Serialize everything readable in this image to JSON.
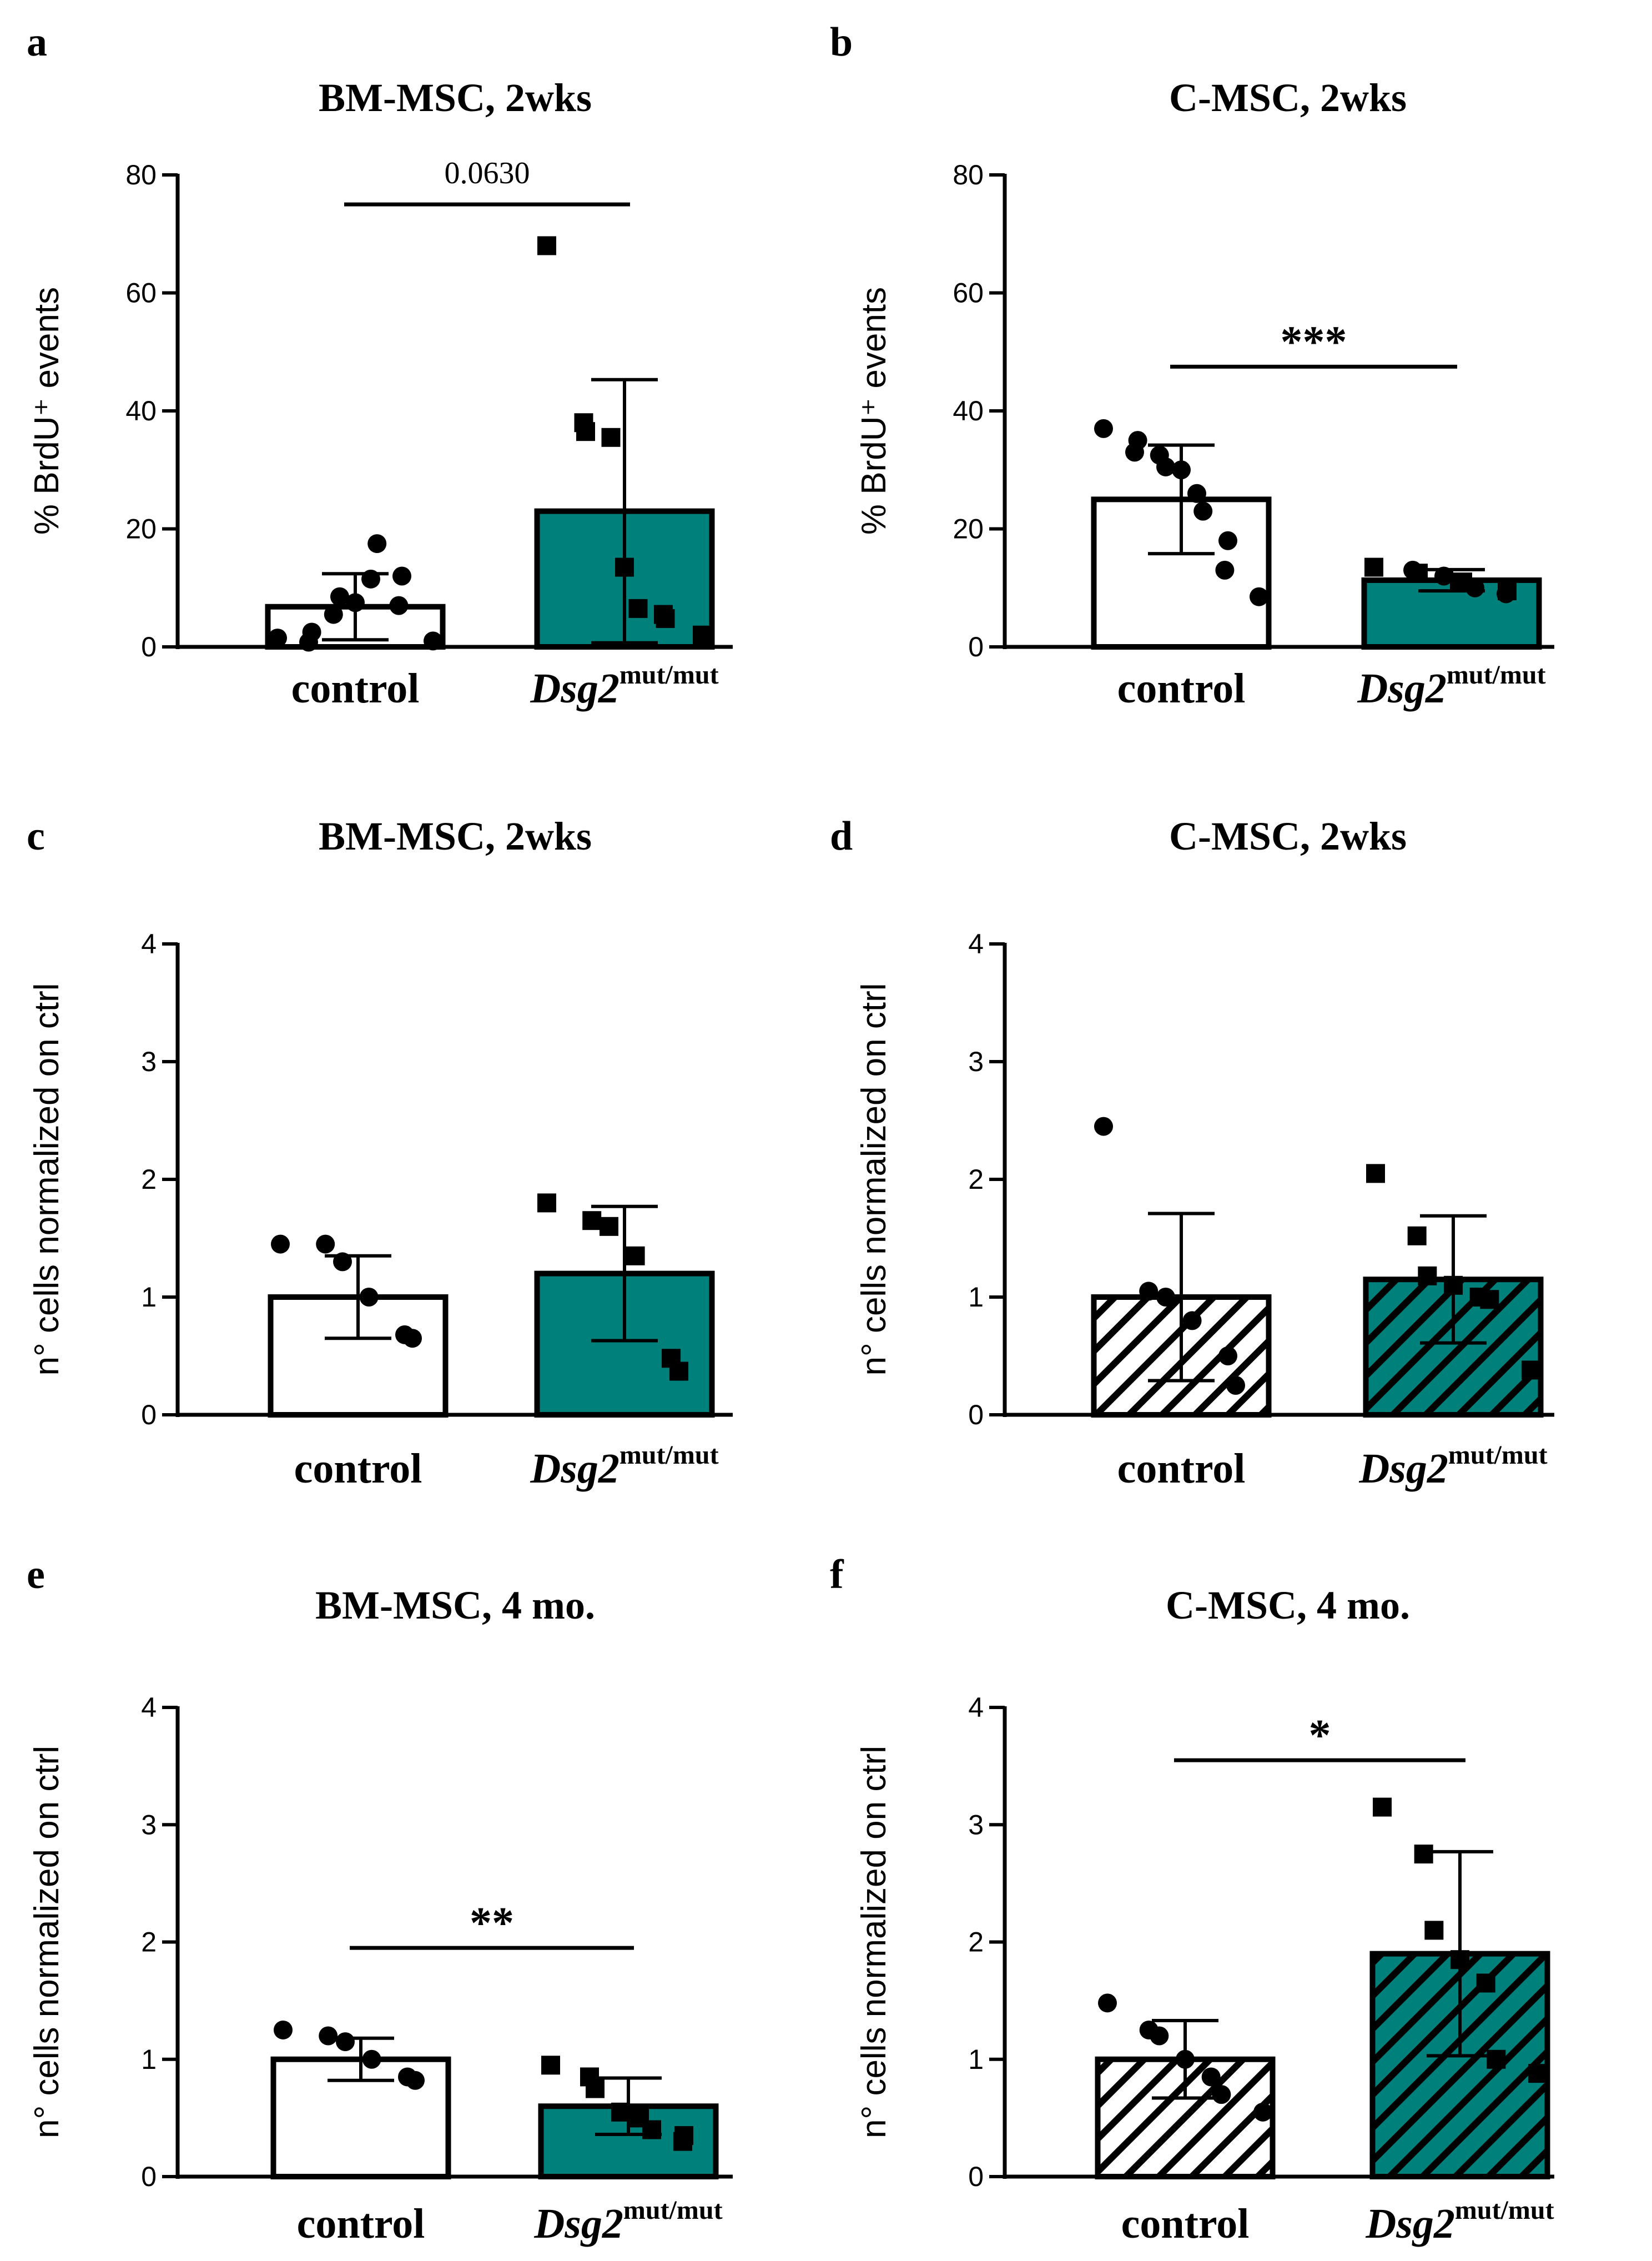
{
  "colors": {
    "teal": "#00807a",
    "control_fill": "#ffffff",
    "ink": "#000000"
  },
  "chart_data": [
    {
      "id": "a",
      "letter": "a",
      "type": "bar",
      "title": "BM-MSC, 2wks",
      "ylabel": "% BrdU⁺ events",
      "ylim": [
        0,
        80
      ],
      "yticks": [
        "0",
        "20",
        "40",
        "60",
        "80"
      ],
      "categories": [
        {
          "name": "control",
          "italic": "",
          "sup": ""
        },
        {
          "name": "",
          "italic": "Dsg2",
          "sup": "mut/mut"
        }
      ],
      "series": [
        {
          "values": [
            6.8,
            23.0
          ],
          "sd": [
            5.6,
            22.3
          ],
          "points": [
            [
              1.5,
              2.5,
              0.8,
              5.5,
              8.5,
              7.5,
              11.5,
              17.5,
              12.0,
              7.0,
              1.0
            ],
            [
              68,
              38,
              36.5,
              35.5,
              13.5,
              6.5,
              5.5,
              4.8,
              2.0
            ]
          ]
        }
      ],
      "fills": [
        "solid-white",
        "solid-teal"
      ],
      "markers": [
        "circle",
        "square"
      ],
      "significance": {
        "label": "0.0630",
        "y": 75,
        "bold": false
      }
    },
    {
      "id": "b",
      "letter": "b",
      "type": "bar",
      "title": "C-MSC, 2wks",
      "ylabel": "% BrdU⁺ events",
      "ylim": [
        0,
        80
      ],
      "yticks": [
        "0",
        "20",
        "40",
        "60",
        "80"
      ],
      "categories": [
        {
          "name": "control",
          "italic": "",
          "sup": ""
        },
        {
          "name": "",
          "italic": "Dsg2",
          "sup": "mut/mut"
        }
      ],
      "series": [
        {
          "values": [
            25.0,
            11.3
          ],
          "sd": [
            9.2,
            1.8
          ],
          "points": [
            [
              37,
              35,
              33,
              32.5,
              30.5,
              30,
              26,
              23,
              18,
              13,
              8.5
            ],
            [
              13.5,
              13,
              12.5,
              12,
              11,
              10,
              9.5,
              9
            ]
          ]
        }
      ],
      "fills": [
        "solid-white",
        "solid-teal"
      ],
      "markers": [
        "circle",
        "circle+square"
      ],
      "significance": {
        "label": "***",
        "y": 47.5,
        "bold": true
      }
    },
    {
      "id": "c",
      "letter": "c",
      "type": "bar",
      "title": "BM-MSC, 2wks",
      "ylabel": "n° cells normalized on ctrl",
      "ylim": [
        0,
        4
      ],
      "yticks": [
        "0",
        "1",
        "2",
        "3",
        "4"
      ],
      "categories": [
        {
          "name": "control",
          "italic": "",
          "sup": ""
        },
        {
          "name": "",
          "italic": "Dsg2",
          "sup": "mut/mut"
        }
      ],
      "series": [
        {
          "values": [
            1.0,
            1.2
          ],
          "sd": [
            0.35,
            0.57
          ],
          "points": [
            [
              1.45,
              1.45,
              1.3,
              1.0,
              0.68,
              0.65
            ],
            [
              1.8,
              1.65,
              1.6,
              1.35,
              0.48,
              0.37
            ]
          ]
        }
      ],
      "fills": [
        "solid-white",
        "solid-teal"
      ],
      "markers": [
        "circle",
        "square"
      ],
      "significance": null
    },
    {
      "id": "d",
      "letter": "d",
      "type": "bar",
      "title": "C-MSC, 2wks",
      "ylabel": "n° cells normalized on ctrl",
      "ylim": [
        0,
        4
      ],
      "yticks": [
        "0",
        "1",
        "2",
        "3",
        "4"
      ],
      "categories": [
        {
          "name": "control",
          "italic": "",
          "sup": ""
        },
        {
          "name": "",
          "italic": "Dsg2",
          "sup": "mut/mut"
        }
      ],
      "series": [
        {
          "values": [
            1.0,
            1.15
          ],
          "sd": [
            0.71,
            0.54
          ],
          "points": [
            [
              2.45,
              1.05,
              1.0,
              0.8,
              0.5,
              0.25
            ],
            [
              2.05,
              1.52,
              1.18,
              1.1,
              1.0,
              0.98,
              0.38
            ]
          ]
        }
      ],
      "fills": [
        "hatch-white",
        "hatch-teal"
      ],
      "markers": [
        "circle",
        "square"
      ],
      "significance": null
    },
    {
      "id": "e",
      "letter": "e",
      "type": "bar",
      "title": "BM-MSC, 4 mo.",
      "ylabel": "n° cells normalized on ctrl",
      "ylim": [
        0,
        4
      ],
      "yticks": [
        "0",
        "1",
        "2",
        "3",
        "4"
      ],
      "categories": [
        {
          "name": "control",
          "italic": "",
          "sup": ""
        },
        {
          "name": "",
          "italic": "Dsg2",
          "sup": "mut/mut"
        }
      ],
      "series": [
        {
          "values": [
            1.0,
            0.6
          ],
          "sd": [
            0.18,
            0.24
          ],
          "points": [
            [
              1.25,
              1.2,
              1.15,
              1.0,
              0.85,
              0.82
            ],
            [
              0.95,
              0.85,
              0.75,
              0.55,
              0.5,
              0.4,
              0.35,
              0.3
            ]
          ]
        }
      ],
      "fills": [
        "solid-white",
        "solid-teal"
      ],
      "markers": [
        "circle",
        "square"
      ],
      "significance": {
        "label": "**",
        "y": 1.95,
        "bold": true
      }
    },
    {
      "id": "f",
      "letter": "f",
      "type": "bar",
      "title": "C-MSC, 4 mo.",
      "ylabel": "n° cells normalized on ctrl",
      "ylim": [
        0,
        4
      ],
      "yticks": [
        "0",
        "1",
        "2",
        "3",
        "4"
      ],
      "categories": [
        {
          "name": "control",
          "italic": "",
          "sup": ""
        },
        {
          "name": "",
          "italic": "Dsg2",
          "sup": "mut/mut"
        }
      ],
      "series": [
        {
          "values": [
            1.0,
            1.9
          ],
          "sd": [
            0.33,
            0.87
          ],
          "points": [
            [
              1.48,
              1.25,
              1.2,
              1.0,
              0.85,
              0.7,
              0.55
            ],
            [
              3.15,
              2.75,
              2.1,
              1.85,
              1.65,
              1.0,
              0.88
            ]
          ]
        }
      ],
      "fills": [
        "hatch-white",
        "hatch-teal"
      ],
      "markers": [
        "circle",
        "square"
      ],
      "significance": {
        "label": "*",
        "y": 3.55,
        "bold": true
      }
    }
  ]
}
